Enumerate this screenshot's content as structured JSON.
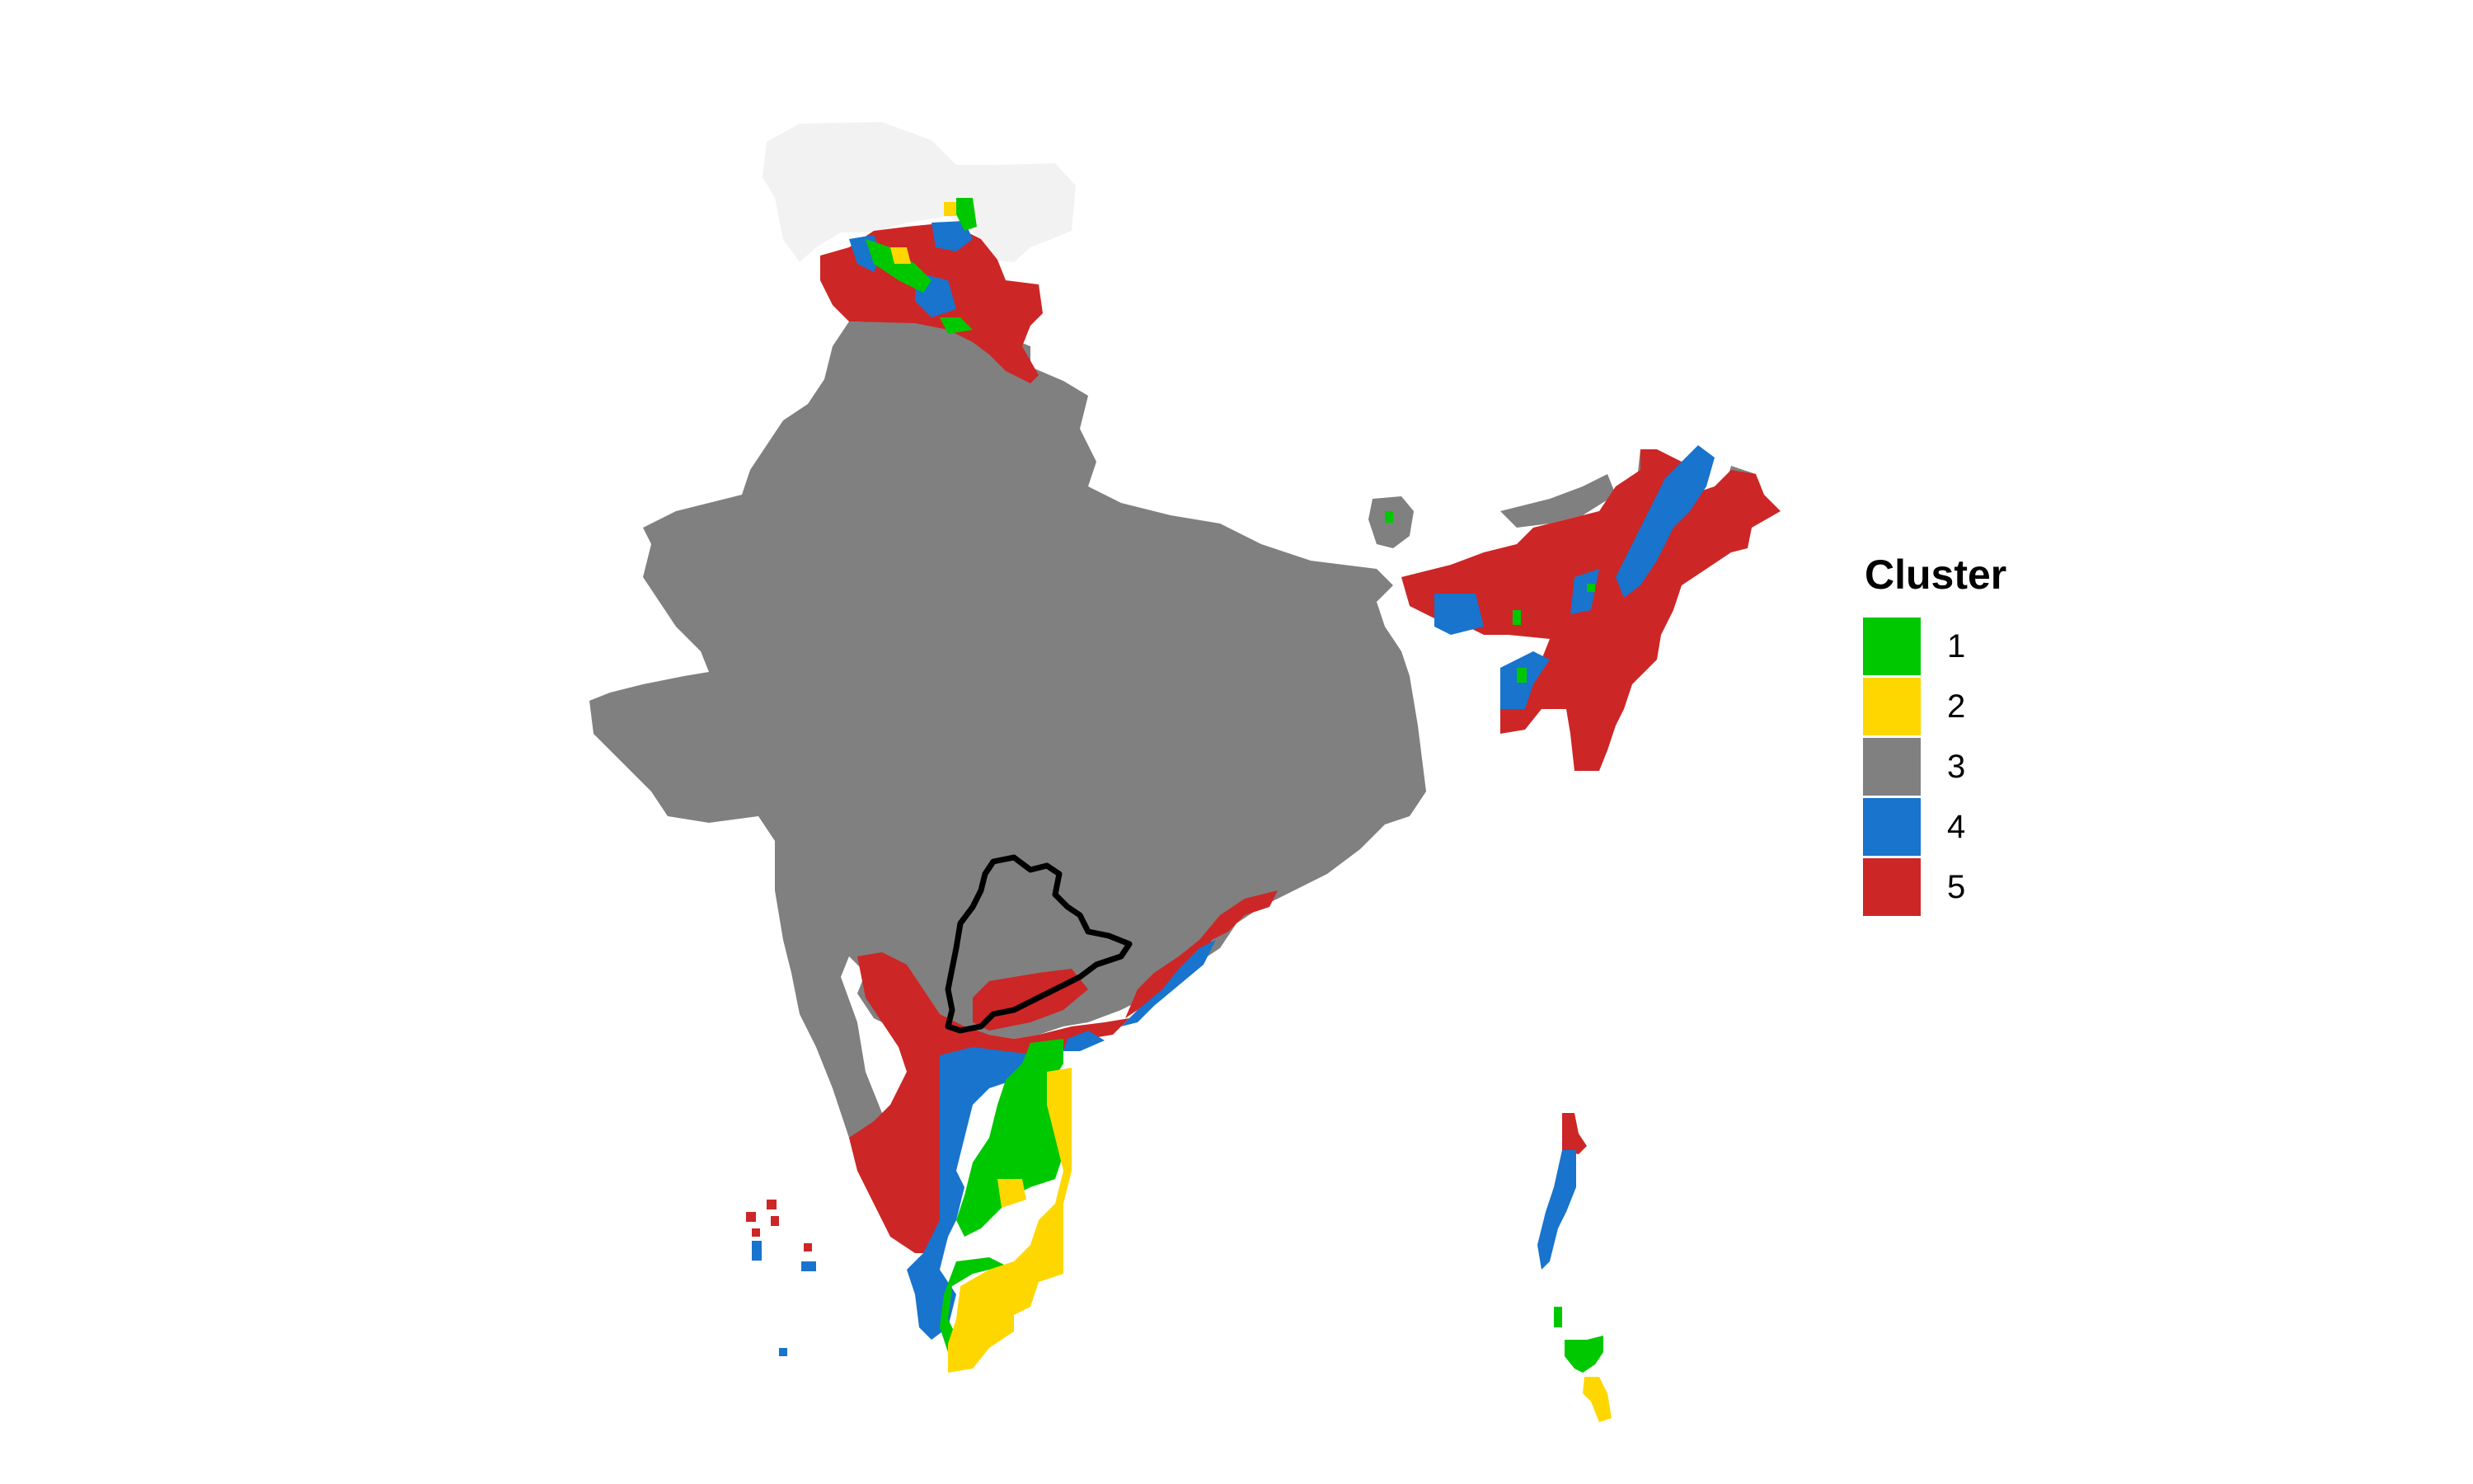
{
  "colors": {
    "background": "#ffffff",
    "no_data": "#f2f2f2",
    "outline": "#000000",
    "c1": "#00c800",
    "c2": "#ffd700",
    "c3": "#808080",
    "c4": "#1874cd",
    "c5": "#cd2626"
  },
  "legend": {
    "title": "Cluster",
    "items": [
      {
        "label": "1",
        "color": "#00c800"
      },
      {
        "label": "2",
        "color": "#ffd700"
      },
      {
        "label": "3",
        "color": "#808080"
      },
      {
        "label": "4",
        "color": "#1874cd"
      },
      {
        "label": "5",
        "color": "#cd2626"
      }
    ]
  }
}
